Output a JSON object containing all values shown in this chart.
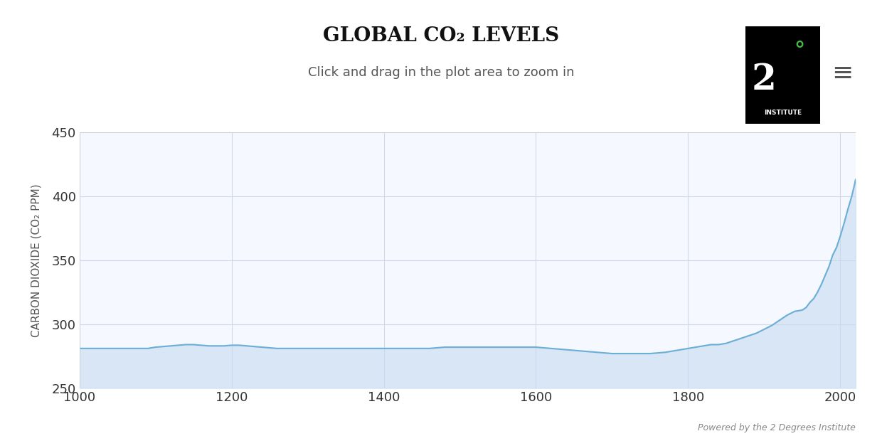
{
  "title": "GLOBAL CO₂ LEVELS",
  "subtitle": "Click and drag in the plot area to zoom in",
  "ylabel": "CARBON DIOXIDE (CO₂ PPM)",
  "xlabel": "",
  "watermark": "Powered by the 2 Degrees Institute",
  "xlim": [
    1000,
    2020
  ],
  "ylim": [
    250,
    450
  ],
  "yticks": [
    250,
    300,
    350,
    400,
    450
  ],
  "xticks": [
    1000,
    1200,
    1400,
    1600,
    1800,
    2000
  ],
  "bg_color": "#ffffff",
  "plot_bg_color": "#f5f8ff",
  "grid_color": "#d0d8e8",
  "line_color": "#6baed6",
  "fill_color": "#c6dbef",
  "fill_alpha": 0.6,
  "co2_data": [
    [
      1000,
      281
    ],
    [
      1010,
      281
    ],
    [
      1020,
      281
    ],
    [
      1030,
      281
    ],
    [
      1040,
      281
    ],
    [
      1050,
      281
    ],
    [
      1060,
      281
    ],
    [
      1070,
      281
    ],
    [
      1080,
      281
    ],
    [
      1090,
      281
    ],
    [
      1100,
      282
    ],
    [
      1110,
      282.5
    ],
    [
      1120,
      283
    ],
    [
      1130,
      283.5
    ],
    [
      1140,
      284
    ],
    [
      1150,
      284
    ],
    [
      1160,
      283.5
    ],
    [
      1170,
      283
    ],
    [
      1180,
      283
    ],
    [
      1190,
      283
    ],
    [
      1200,
      283.5
    ],
    [
      1210,
      283.5
    ],
    [
      1220,
      283
    ],
    [
      1230,
      282.5
    ],
    [
      1240,
      282
    ],
    [
      1250,
      281.5
    ],
    [
      1260,
      281
    ],
    [
      1270,
      281
    ],
    [
      1280,
      281
    ],
    [
      1290,
      281
    ],
    [
      1300,
      281
    ],
    [
      1310,
      281
    ],
    [
      1320,
      281
    ],
    [
      1330,
      281
    ],
    [
      1340,
      281
    ],
    [
      1350,
      281
    ],
    [
      1360,
      281
    ],
    [
      1370,
      281
    ],
    [
      1380,
      281
    ],
    [
      1390,
      281
    ],
    [
      1400,
      281
    ],
    [
      1410,
      281
    ],
    [
      1420,
      281
    ],
    [
      1430,
      281
    ],
    [
      1440,
      281
    ],
    [
      1450,
      281
    ],
    [
      1460,
      281
    ],
    [
      1470,
      281.5
    ],
    [
      1480,
      282
    ],
    [
      1490,
      282
    ],
    [
      1500,
      282
    ],
    [
      1510,
      282
    ],
    [
      1520,
      282
    ],
    [
      1530,
      282
    ],
    [
      1540,
      282
    ],
    [
      1550,
      282
    ],
    [
      1560,
      282
    ],
    [
      1570,
      282
    ],
    [
      1580,
      282
    ],
    [
      1590,
      282
    ],
    [
      1600,
      282
    ],
    [
      1610,
      281.5
    ],
    [
      1620,
      281
    ],
    [
      1630,
      280.5
    ],
    [
      1640,
      280
    ],
    [
      1650,
      279.5
    ],
    [
      1660,
      279
    ],
    [
      1670,
      278.5
    ],
    [
      1680,
      278
    ],
    [
      1690,
      277.5
    ],
    [
      1700,
      277
    ],
    [
      1710,
      277
    ],
    [
      1720,
      277
    ],
    [
      1730,
      277
    ],
    [
      1740,
      277
    ],
    [
      1750,
      277
    ],
    [
      1760,
      277.5
    ],
    [
      1770,
      278
    ],
    [
      1780,
      279
    ],
    [
      1790,
      280
    ],
    [
      1800,
      281
    ],
    [
      1810,
      282
    ],
    [
      1820,
      283
    ],
    [
      1830,
      284
    ],
    [
      1840,
      284
    ],
    [
      1850,
      285
    ],
    [
      1860,
      287
    ],
    [
      1870,
      289
    ],
    [
      1880,
      291
    ],
    [
      1890,
      293
    ],
    [
      1900,
      296
    ],
    [
      1910,
      299
    ],
    [
      1920,
      303
    ],
    [
      1930,
      307
    ],
    [
      1940,
      310
    ],
    [
      1950,
      311
    ],
    [
      1955,
      313
    ],
    [
      1960,
      317
    ],
    [
      1965,
      320
    ],
    [
      1970,
      325
    ],
    [
      1975,
      331
    ],
    [
      1980,
      338
    ],
    [
      1985,
      345
    ],
    [
      1990,
      354
    ],
    [
      1995,
      360
    ],
    [
      2000,
      369
    ],
    [
      2005,
      379
    ],
    [
      2010,
      390
    ],
    [
      2015,
      400
    ],
    [
      2019,
      410
    ],
    [
      2020,
      413
    ]
  ]
}
